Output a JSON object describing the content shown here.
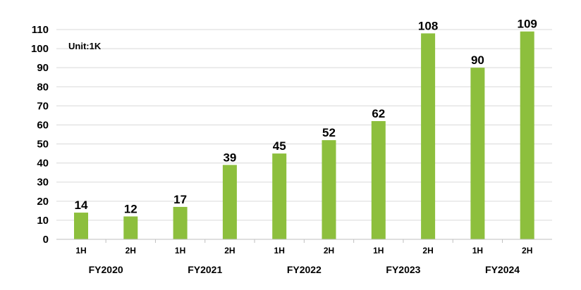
{
  "chart_data": {
    "type": "bar",
    "unit_note": "Unit:1K",
    "categories": [
      "1H",
      "2H",
      "1H",
      "2H",
      "1H",
      "2H",
      "1H",
      "2H",
      "1H",
      "2H"
    ],
    "groups": [
      {
        "label": "FY2020",
        "categories": [
          "1H",
          "2H"
        ]
      },
      {
        "label": "FY2021",
        "categories": [
          "1H",
          "2H"
        ]
      },
      {
        "label": "FY2022",
        "categories": [
          "1H",
          "2H"
        ]
      },
      {
        "label": "FY2023",
        "categories": [
          "1H",
          "2H"
        ]
      },
      {
        "label": "FY2024",
        "categories": [
          "1H",
          "2H"
        ]
      }
    ],
    "values": [
      14,
      12,
      17,
      39,
      45,
      52,
      62,
      108,
      90,
      109
    ],
    "ylim": [
      0,
      110
    ],
    "yticks": [
      0,
      10,
      20,
      30,
      40,
      50,
      60,
      70,
      80,
      90,
      100,
      110
    ],
    "grid": true,
    "bar_color": "#8dbf3d",
    "title": "",
    "xlabel": "",
    "ylabel": ""
  }
}
